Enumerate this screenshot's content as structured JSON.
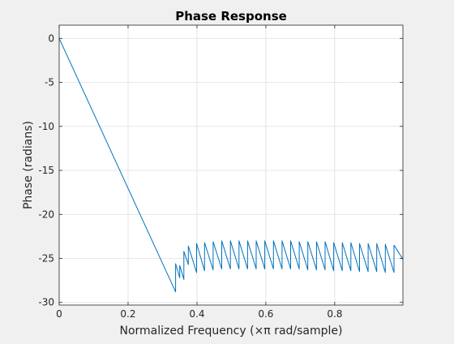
{
  "chart_data": {
    "type": "line",
    "title": "Phase Response",
    "xlabel": "Normalized Frequency (×π rad/sample)",
    "ylabel": "Phase (radians)",
    "xlim": [
      0,
      0.998
    ],
    "ylim": [
      -30.3,
      1.5
    ],
    "xticks": [
      0,
      0.2,
      0.4,
      0.6,
      0.8
    ],
    "xtick_labels": [
      "0",
      "0.2",
      "0.4",
      "0.6",
      "0.8"
    ],
    "yticks": [
      0,
      -5,
      -10,
      -15,
      -20,
      -25,
      -30
    ],
    "ytick_labels": [
      "0",
      "-5",
      "-10",
      "-15",
      "-20",
      "-25",
      "-30"
    ],
    "grid": true,
    "legend": "none",
    "series": [
      {
        "color": "#0072BD",
        "x": [
          0,
          0.338,
          0.338,
          0.35,
          0.35,
          0.362,
          0.362,
          0.375,
          0.375,
          0.399,
          0.399,
          0.422,
          0.422,
          0.447,
          0.447,
          0.472,
          0.472,
          0.497,
          0.497,
          0.522,
          0.522,
          0.547,
          0.547,
          0.572,
          0.572,
          0.597,
          0.597,
          0.622,
          0.622,
          0.647,
          0.647,
          0.672,
          0.672,
          0.697,
          0.697,
          0.722,
          0.722,
          0.747,
          0.747,
          0.772,
          0.772,
          0.797,
          0.797,
          0.822,
          0.822,
          0.847,
          0.847,
          0.872,
          0.872,
          0.897,
          0.897,
          0.922,
          0.922,
          0.947,
          0.947,
          0.972,
          0.972,
          0.998
        ],
        "y": [
          0,
          -28.8,
          -25.6,
          -27.2,
          -25.8,
          -27.4,
          -24.2,
          -25.7,
          -23.6,
          -26.6,
          -23.3,
          -26.4,
          -23.2,
          -26.3,
          -23.1,
          -26.2,
          -23.0,
          -26.2,
          -23.0,
          -26.2,
          -23.0,
          -26.2,
          -23.0,
          -26.2,
          -23.0,
          -26.2,
          -23.0,
          -26.2,
          -23.0,
          -26.2,
          -23.0,
          -26.2,
          -23.0,
          -26.2,
          -23.1,
          -26.3,
          -23.1,
          -26.3,
          -23.1,
          -26.3,
          -23.1,
          -26.4,
          -23.2,
          -26.4,
          -23.2,
          -26.4,
          -23.2,
          -26.5,
          -23.3,
          -26.5,
          -23.3,
          -26.5,
          -23.3,
          -26.6,
          -23.4,
          -26.6,
          -23.5,
          -25.1
        ]
      }
    ]
  }
}
